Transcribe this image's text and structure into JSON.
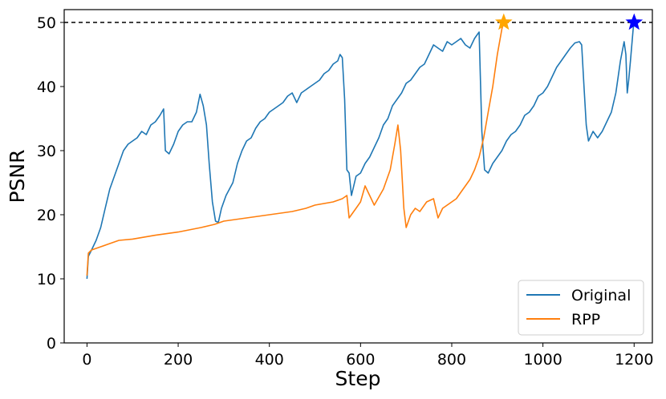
{
  "chart_data": {
    "type": "line",
    "title": "",
    "xlabel": "Step",
    "ylabel": "PSNR",
    "xlim": [
      -50,
      1240
    ],
    "ylim": [
      0,
      52
    ],
    "xticks": [
      0,
      200,
      400,
      600,
      800,
      1000,
      1200
    ],
    "yticks": [
      0,
      10,
      20,
      30,
      40,
      50
    ],
    "grid": false,
    "legend_position": "lower-right",
    "reference_line": {
      "y": 50,
      "style": "dashed",
      "color": "#000000"
    },
    "series": [
      {
        "name": "Original",
        "color": "#1f77b4",
        "points": [
          [
            0,
            10
          ],
          [
            3,
            13.5
          ],
          [
            10,
            14.5
          ],
          [
            20,
            16
          ],
          [
            30,
            18
          ],
          [
            40,
            21
          ],
          [
            50,
            24
          ],
          [
            60,
            26
          ],
          [
            70,
            28
          ],
          [
            80,
            30
          ],
          [
            90,
            31
          ],
          [
            100,
            31.5
          ],
          [
            110,
            32
          ],
          [
            120,
            33
          ],
          [
            130,
            32.5
          ],
          [
            140,
            34
          ],
          [
            150,
            34.5
          ],
          [
            160,
            35.5
          ],
          [
            168,
            36.5
          ],
          [
            172,
            30
          ],
          [
            180,
            29.5
          ],
          [
            190,
            31
          ],
          [
            200,
            33
          ],
          [
            210,
            34
          ],
          [
            220,
            34.5
          ],
          [
            230,
            34.5
          ],
          [
            240,
            36
          ],
          [
            248,
            38.8
          ],
          [
            255,
            37
          ],
          [
            262,
            34
          ],
          [
            268,
            28
          ],
          [
            275,
            22
          ],
          [
            282,
            19
          ],
          [
            288,
            18.8
          ],
          [
            295,
            21
          ],
          [
            305,
            23
          ],
          [
            320,
            25
          ],
          [
            330,
            28
          ],
          [
            340,
            30
          ],
          [
            350,
            31.5
          ],
          [
            360,
            32
          ],
          [
            370,
            33.5
          ],
          [
            380,
            34.5
          ],
          [
            390,
            35
          ],
          [
            400,
            36
          ],
          [
            410,
            36.5
          ],
          [
            420,
            37
          ],
          [
            430,
            37.5
          ],
          [
            440,
            38.5
          ],
          [
            450,
            39
          ],
          [
            460,
            37.5
          ],
          [
            470,
            39
          ],
          [
            480,
            39.5
          ],
          [
            490,
            40
          ],
          [
            500,
            40.5
          ],
          [
            510,
            41
          ],
          [
            520,
            42
          ],
          [
            530,
            42.5
          ],
          [
            540,
            43.5
          ],
          [
            550,
            44
          ],
          [
            555,
            45
          ],
          [
            560,
            44.5
          ],
          [
            565,
            38
          ],
          [
            570,
            27
          ],
          [
            575,
            26.5
          ],
          [
            580,
            23
          ],
          [
            590,
            26
          ],
          [
            600,
            26.5
          ],
          [
            610,
            28
          ],
          [
            620,
            29
          ],
          [
            630,
            30.5
          ],
          [
            640,
            32
          ],
          [
            650,
            34
          ],
          [
            660,
            35
          ],
          [
            670,
            37
          ],
          [
            680,
            38
          ],
          [
            690,
            39
          ],
          [
            700,
            40.5
          ],
          [
            710,
            41
          ],
          [
            720,
            42
          ],
          [
            730,
            43
          ],
          [
            740,
            43.5
          ],
          [
            750,
            45
          ],
          [
            760,
            46.5
          ],
          [
            770,
            46
          ],
          [
            780,
            45.5
          ],
          [
            790,
            47
          ],
          [
            800,
            46.5
          ],
          [
            810,
            47
          ],
          [
            820,
            47.5
          ],
          [
            830,
            46.5
          ],
          [
            840,
            46
          ],
          [
            850,
            47.5
          ],
          [
            855,
            48
          ],
          [
            860,
            48.5
          ],
          [
            866,
            33
          ],
          [
            872,
            27
          ],
          [
            880,
            26.5
          ],
          [
            890,
            28
          ],
          [
            900,
            29
          ],
          [
            910,
            30
          ],
          [
            920,
            31.5
          ],
          [
            930,
            32.5
          ],
          [
            940,
            33
          ],
          [
            950,
            34
          ],
          [
            960,
            35.5
          ],
          [
            970,
            36
          ],
          [
            980,
            37
          ],
          [
            990,
            38.5
          ],
          [
            1000,
            39
          ],
          [
            1010,
            40
          ],
          [
            1020,
            41.5
          ],
          [
            1030,
            43
          ],
          [
            1040,
            44
          ],
          [
            1050,
            45
          ],
          [
            1060,
            46
          ],
          [
            1070,
            46.8
          ],
          [
            1080,
            47
          ],
          [
            1085,
            46.5
          ],
          [
            1090,
            40
          ],
          [
            1095,
            34
          ],
          [
            1100,
            31.5
          ],
          [
            1110,
            33
          ],
          [
            1120,
            32
          ],
          [
            1130,
            33
          ],
          [
            1140,
            34.5
          ],
          [
            1150,
            36
          ],
          [
            1160,
            39
          ],
          [
            1170,
            44
          ],
          [
            1178,
            47
          ],
          [
            1182,
            45
          ],
          [
            1185,
            39
          ],
          [
            1188,
            41
          ],
          [
            1192,
            44
          ],
          [
            1198,
            49
          ],
          [
            1200,
            50
          ]
        ]
      },
      {
        "name": "RPP",
        "color": "#ff7f0e",
        "points": [
          [
            0,
            10.5
          ],
          [
            3,
            14
          ],
          [
            10,
            14.5
          ],
          [
            30,
            15
          ],
          [
            50,
            15.5
          ],
          [
            70,
            16
          ],
          [
            100,
            16.2
          ],
          [
            150,
            16.8
          ],
          [
            200,
            17.3
          ],
          [
            250,
            18
          ],
          [
            280,
            18.5
          ],
          [
            300,
            19
          ],
          [
            350,
            19.5
          ],
          [
            400,
            20
          ],
          [
            450,
            20.5
          ],
          [
            480,
            21
          ],
          [
            500,
            21.5
          ],
          [
            540,
            22
          ],
          [
            560,
            22.5
          ],
          [
            570,
            23
          ],
          [
            575,
            19.5
          ],
          [
            590,
            21
          ],
          [
            600,
            22
          ],
          [
            610,
            24.5
          ],
          [
            620,
            23
          ],
          [
            630,
            21.5
          ],
          [
            650,
            24
          ],
          [
            665,
            27
          ],
          [
            675,
            31
          ],
          [
            682,
            34
          ],
          [
            688,
            30
          ],
          [
            695,
            21
          ],
          [
            700,
            18
          ],
          [
            710,
            20
          ],
          [
            720,
            21
          ],
          [
            730,
            20.5
          ],
          [
            745,
            22
          ],
          [
            760,
            22.5
          ],
          [
            770,
            19.5
          ],
          [
            780,
            21
          ],
          [
            790,
            21.5
          ],
          [
            800,
            22
          ],
          [
            810,
            22.5
          ],
          [
            820,
            23.5
          ],
          [
            830,
            24.5
          ],
          [
            840,
            25.5
          ],
          [
            850,
            27
          ],
          [
            860,
            29
          ],
          [
            870,
            32
          ],
          [
            880,
            36
          ],
          [
            890,
            40
          ],
          [
            900,
            45
          ],
          [
            910,
            49
          ],
          [
            914,
            50
          ]
        ]
      }
    ],
    "markers": [
      {
        "x": 914,
        "y": 50,
        "shape": "star",
        "color": "#ffa500"
      },
      {
        "x": 1200,
        "y": 50,
        "shape": "star",
        "color": "#0000ff"
      }
    ]
  }
}
